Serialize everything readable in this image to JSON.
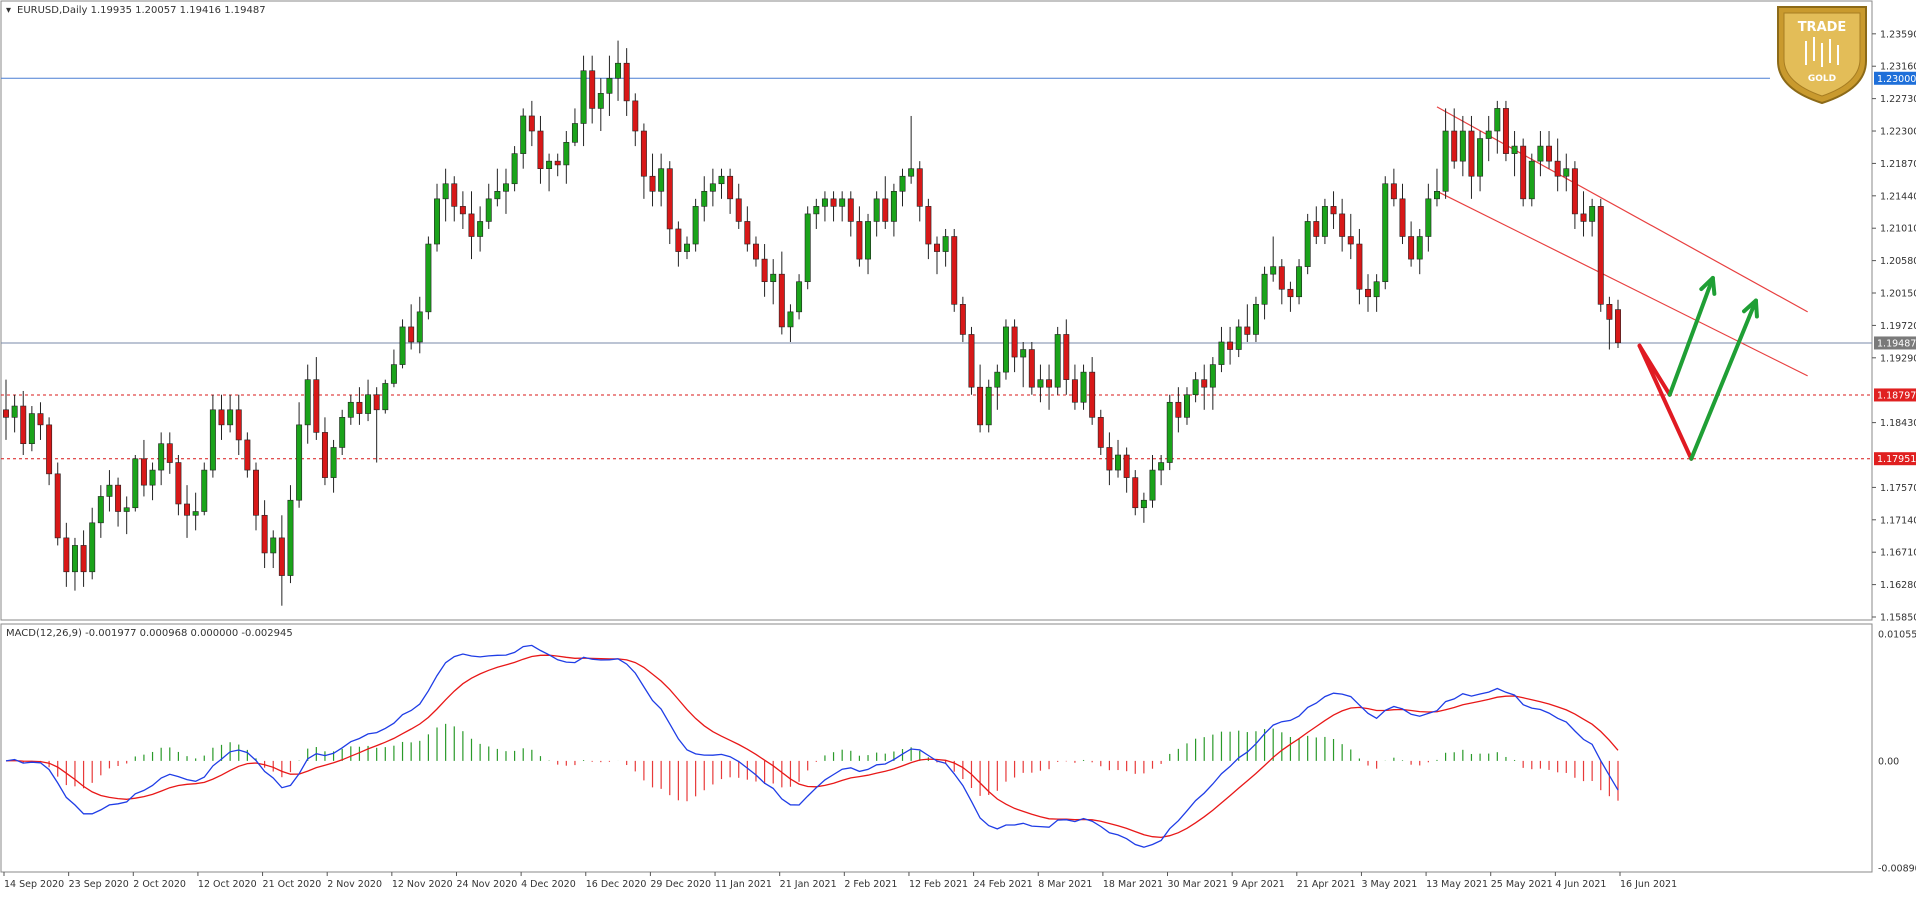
{
  "main_panel": {
    "symbol_header": "EURUSD,Daily  1.19935 1.20057 1.19416 1.19487",
    "y_ticks": [
      "1.23590",
      "1.23160",
      "1.22730",
      "1.22300",
      "1.21870",
      "1.21440",
      "1.21010",
      "1.20580",
      "1.20150",
      "1.19720",
      "1.19290",
      "1.18430",
      "1.17570",
      "1.17140",
      "1.16710",
      "1.16280",
      "1.15850"
    ],
    "price_labels": [
      {
        "text": "1.23000",
        "value": 1.23,
        "color": "#1e6fd9",
        "kind": "line"
      },
      {
        "text": "1.19487",
        "value": 1.19487,
        "color": "#7a7a7a",
        "kind": "current"
      },
      {
        "text": "1.18797",
        "value": 1.18797,
        "color": "#e02020",
        "kind": "dashed"
      },
      {
        "text": "1.17951",
        "value": 1.17951,
        "color": "#e02020",
        "kind": "dashed"
      }
    ]
  },
  "macd_panel": {
    "header": "MACD(12,26,9) -0.001977 0.000968 0.000000 -0.002945",
    "y_ticks": [
      "0.010553",
      "0.00",
      "-0.008908"
    ]
  },
  "x_labels": [
    "14 Sep 2020",
    "23 Sep 2020",
    "2 Oct 2020",
    "12 Oct 2020",
    "21 Oct 2020",
    "2 Nov 2020",
    "12 Nov 2020",
    "24 Nov 2020",
    "4 Dec 2020",
    "16 Dec 2020",
    "29 Dec 2020",
    "11 Jan 2021",
    "21 Jan 2021",
    "2 Feb 2021",
    "12 Feb 2021",
    "24 Feb 2021",
    "8 Mar 2021",
    "18 Mar 2021",
    "30 Mar 2021",
    "9 Apr 2021",
    "21 Apr 2021",
    "3 May 2021",
    "13 May 2021",
    "25 May 2021",
    "4 Jun 2021",
    "16 Jun 2021"
  ],
  "logo": {
    "line1": "TRADE",
    "line2": "GOLD"
  },
  "colors": {
    "bull": "#1aa31a",
    "bear": "#d81818",
    "macd_line": "#1f3de6",
    "signal_line": "#e81818",
    "hist_pos": "#2a9a2a",
    "hist_neg": "#e83a3a",
    "channel": "#e84040",
    "arrow_green": "#1f9f35",
    "arrow_red": "#e01a22",
    "hline_blue": "#4a7fd4"
  },
  "chart_data": {
    "type": "candlestick",
    "title": "EURUSD,Daily",
    "ylim": [
      1.1585,
      1.238
    ],
    "macd_ylim": [
      -0.008908,
      0.010553
    ],
    "indicator": "MACD(12,26,9)",
    "candles": [
      [
        1.186,
        1.19,
        1.182,
        1.185
      ],
      [
        1.185,
        1.188,
        1.183,
        1.1865
      ],
      [
        1.1865,
        1.1885,
        1.18,
        1.1815
      ],
      [
        1.1815,
        1.1865,
        1.1805,
        1.1855
      ],
      [
        1.1855,
        1.187,
        1.182,
        1.184
      ],
      [
        1.184,
        1.185,
        1.176,
        1.1775
      ],
      [
        1.1775,
        1.179,
        1.168,
        1.169
      ],
      [
        1.169,
        1.171,
        1.1625,
        1.1645
      ],
      [
        1.1645,
        1.169,
        1.162,
        1.168
      ],
      [
        1.168,
        1.17,
        1.1625,
        1.1645
      ],
      [
        1.1645,
        1.173,
        1.1635,
        1.171
      ],
      [
        1.171,
        1.176,
        1.169,
        1.1745
      ],
      [
        1.1745,
        1.178,
        1.1725,
        1.176
      ],
      [
        1.176,
        1.177,
        1.1705,
        1.1725
      ],
      [
        1.1725,
        1.1745,
        1.1695,
        1.173
      ],
      [
        1.173,
        1.18,
        1.1725,
        1.1795
      ],
      [
        1.1795,
        1.182,
        1.1745,
        1.176
      ],
      [
        1.176,
        1.179,
        1.174,
        1.178
      ],
      [
        1.178,
        1.183,
        1.176,
        1.1815
      ],
      [
        1.1815,
        1.183,
        1.1775,
        1.179
      ],
      [
        1.179,
        1.18,
        1.172,
        1.1735
      ],
      [
        1.1735,
        1.176,
        1.169,
        1.172
      ],
      [
        1.172,
        1.175,
        1.17,
        1.1725
      ],
      [
        1.1725,
        1.179,
        1.172,
        1.178
      ],
      [
        1.178,
        1.188,
        1.177,
        1.186
      ],
      [
        1.186,
        1.188,
        1.182,
        1.184
      ],
      [
        1.184,
        1.188,
        1.183,
        1.186
      ],
      [
        1.186,
        1.188,
        1.18,
        1.182
      ],
      [
        1.182,
        1.183,
        1.177,
        1.178
      ],
      [
        1.178,
        1.179,
        1.17,
        1.172
      ],
      [
        1.172,
        1.174,
        1.165,
        1.167
      ],
      [
        1.167,
        1.17,
        1.165,
        1.169
      ],
      [
        1.169,
        1.172,
        1.16,
        1.164
      ],
      [
        1.164,
        1.176,
        1.163,
        1.174
      ],
      [
        1.174,
        1.187,
        1.173,
        1.184
      ],
      [
        1.184,
        1.192,
        1.1815,
        1.19
      ],
      [
        1.19,
        1.193,
        1.182,
        1.183
      ],
      [
        1.183,
        1.185,
        1.176,
        1.177
      ],
      [
        1.177,
        1.182,
        1.175,
        1.181
      ],
      [
        1.181,
        1.186,
        1.18,
        1.185
      ],
      [
        1.185,
        1.188,
        1.184,
        1.187
      ],
      [
        1.187,
        1.189,
        1.184,
        1.1855
      ],
      [
        1.1855,
        1.19,
        1.1845,
        1.188
      ],
      [
        1.188,
        1.189,
        1.179,
        1.186
      ],
      [
        1.186,
        1.19,
        1.1855,
        1.1895
      ],
      [
        1.1895,
        1.194,
        1.189,
        1.192
      ],
      [
        1.192,
        1.198,
        1.1915,
        1.197
      ],
      [
        1.197,
        1.2,
        1.194,
        1.195
      ],
      [
        1.195,
        1.201,
        1.1935,
        1.199
      ],
      [
        1.199,
        1.209,
        1.198,
        1.208
      ],
      [
        1.208,
        1.216,
        1.207,
        1.214
      ],
      [
        1.214,
        1.218,
        1.211,
        1.216
      ],
      [
        1.216,
        1.217,
        1.211,
        1.213
      ],
      [
        1.213,
        1.215,
        1.21,
        1.212
      ],
      [
        1.212,
        1.215,
        1.206,
        1.209
      ],
      [
        1.209,
        1.213,
        1.207,
        1.211
      ],
      [
        1.211,
        1.216,
        1.21,
        1.214
      ],
      [
        1.214,
        1.218,
        1.213,
        1.215
      ],
      [
        1.215,
        1.218,
        1.212,
        1.216
      ],
      [
        1.216,
        1.221,
        1.215,
        1.22
      ],
      [
        1.22,
        1.226,
        1.218,
        1.225
      ],
      [
        1.225,
        1.227,
        1.221,
        1.223
      ],
      [
        1.223,
        1.225,
        1.216,
        1.218
      ],
      [
        1.218,
        1.22,
        1.215,
        1.219
      ],
      [
        1.219,
        1.22,
        1.217,
        1.2185
      ],
      [
        1.2185,
        1.223,
        1.216,
        1.2215
      ],
      [
        1.2215,
        1.226,
        1.221,
        1.224
      ],
      [
        1.224,
        1.233,
        1.221,
        1.231
      ],
      [
        1.231,
        1.233,
        1.224,
        1.226
      ],
      [
        1.226,
        1.23,
        1.223,
        1.228
      ],
      [
        1.228,
        1.233,
        1.225,
        1.23
      ],
      [
        1.23,
        1.235,
        1.227,
        1.232
      ],
      [
        1.232,
        1.234,
        1.225,
        1.227
      ],
      [
        1.227,
        1.228,
        1.221,
        1.223
      ],
      [
        1.223,
        1.224,
        1.214,
        1.217
      ],
      [
        1.217,
        1.22,
        1.213,
        1.215
      ],
      [
        1.215,
        1.22,
        1.213,
        1.218
      ],
      [
        1.218,
        1.219,
        1.208,
        1.21
      ],
      [
        1.21,
        1.211,
        1.205,
        1.207
      ],
      [
        1.207,
        1.209,
        1.206,
        1.208
      ],
      [
        1.208,
        1.214,
        1.207,
        1.213
      ],
      [
        1.213,
        1.217,
        1.211,
        1.215
      ],
      [
        1.215,
        1.218,
        1.213,
        1.216
      ],
      [
        1.216,
        1.218,
        1.214,
        1.217
      ],
      [
        1.217,
        1.218,
        1.212,
        1.214
      ],
      [
        1.214,
        1.216,
        1.21,
        1.211
      ],
      [
        1.211,
        1.213,
        1.207,
        1.208
      ],
      [
        1.208,
        1.209,
        1.205,
        1.206
      ],
      [
        1.206,
        1.208,
        1.201,
        1.203
      ],
      [
        1.203,
        1.206,
        1.2,
        1.204
      ],
      [
        1.204,
        1.207,
        1.196,
        1.197
      ],
      [
        1.197,
        1.2,
        1.195,
        1.199
      ],
      [
        1.199,
        1.204,
        1.198,
        1.203
      ],
      [
        1.203,
        1.213,
        1.202,
        1.212
      ],
      [
        1.212,
        1.214,
        1.21,
        1.213
      ],
      [
        1.213,
        1.215,
        1.211,
        1.214
      ],
      [
        1.214,
        1.215,
        1.211,
        1.213
      ],
      [
        1.213,
        1.215,
        1.211,
        1.214
      ],
      [
        1.214,
        1.215,
        1.209,
        1.211
      ],
      [
        1.211,
        1.213,
        1.205,
        1.206
      ],
      [
        1.206,
        1.212,
        1.204,
        1.211
      ],
      [
        1.211,
        1.215,
        1.209,
        1.214
      ],
      [
        1.214,
        1.217,
        1.21,
        1.211
      ],
      [
        1.211,
        1.216,
        1.209,
        1.215
      ],
      [
        1.215,
        1.218,
        1.213,
        1.217
      ],
      [
        1.217,
        1.225,
        1.216,
        1.218
      ],
      [
        1.218,
        1.219,
        1.211,
        1.213
      ],
      [
        1.213,
        1.214,
        1.206,
        1.208
      ],
      [
        1.208,
        1.209,
        1.204,
        1.207
      ],
      [
        1.207,
        1.21,
        1.205,
        1.209
      ],
      [
        1.209,
        1.21,
        1.199,
        1.2
      ],
      [
        1.2,
        1.201,
        1.195,
        1.196
      ],
      [
        1.196,
        1.197,
        1.188,
        1.189
      ],
      [
        1.189,
        1.192,
        1.183,
        1.184
      ],
      [
        1.184,
        1.19,
        1.183,
        1.189
      ],
      [
        1.189,
        1.192,
        1.186,
        1.191
      ],
      [
        1.191,
        1.198,
        1.19,
        1.197
      ],
      [
        1.197,
        1.198,
        1.191,
        1.193
      ],
      [
        1.193,
        1.195,
        1.189,
        1.194
      ],
      [
        1.194,
        1.195,
        1.188,
        1.189
      ],
      [
        1.189,
        1.192,
        1.187,
        1.19
      ],
      [
        1.19,
        1.192,
        1.186,
        1.189
      ],
      [
        1.189,
        1.197,
        1.188,
        1.196
      ],
      [
        1.196,
        1.198,
        1.188,
        1.19
      ],
      [
        1.19,
        1.192,
        1.186,
        1.187
      ],
      [
        1.187,
        1.192,
        1.186,
        1.191
      ],
      [
        1.191,
        1.193,
        1.184,
        1.185
      ],
      [
        1.185,
        1.186,
        1.18,
        1.181
      ],
      [
        1.181,
        1.183,
        1.176,
        1.178
      ],
      [
        1.178,
        1.182,
        1.177,
        1.18
      ],
      [
        1.18,
        1.181,
        1.175,
        1.177
      ],
      [
        1.177,
        1.178,
        1.172,
        1.173
      ],
      [
        1.173,
        1.175,
        1.171,
        1.174
      ],
      [
        1.174,
        1.18,
        1.173,
        1.178
      ],
      [
        1.178,
        1.18,
        1.176,
        1.179
      ],
      [
        1.179,
        1.188,
        1.178,
        1.187
      ],
      [
        1.187,
        1.189,
        1.183,
        1.185
      ],
      [
        1.185,
        1.189,
        1.184,
        1.188
      ],
      [
        1.188,
        1.191,
        1.187,
        1.19
      ],
      [
        1.19,
        1.192,
        1.186,
        1.189
      ],
      [
        1.189,
        1.193,
        1.186,
        1.192
      ],
      [
        1.192,
        1.197,
        1.191,
        1.195
      ],
      [
        1.195,
        1.197,
        1.192,
        1.194
      ],
      [
        1.194,
        1.198,
        1.193,
        1.197
      ],
      [
        1.197,
        1.2,
        1.195,
        1.196
      ],
      [
        1.196,
        1.201,
        1.195,
        1.2
      ],
      [
        1.2,
        1.205,
        1.198,
        1.204
      ],
      [
        1.204,
        1.209,
        1.203,
        1.205
      ],
      [
        1.205,
        1.206,
        1.2,
        1.202
      ],
      [
        1.202,
        1.203,
        1.199,
        1.201
      ],
      [
        1.201,
        1.206,
        1.2,
        1.205
      ],
      [
        1.205,
        1.212,
        1.204,
        1.211
      ],
      [
        1.211,
        1.213,
        1.208,
        1.209
      ],
      [
        1.209,
        1.214,
        1.208,
        1.213
      ],
      [
        1.213,
        1.215,
        1.21,
        1.212
      ],
      [
        1.212,
        1.214,
        1.207,
        1.209
      ],
      [
        1.209,
        1.212,
        1.206,
        1.208
      ],
      [
        1.208,
        1.21,
        1.2,
        1.202
      ],
      [
        1.202,
        1.204,
        1.199,
        1.201
      ],
      [
        1.201,
        1.204,
        1.199,
        1.203
      ],
      [
        1.203,
        1.217,
        1.202,
        1.216
      ],
      [
        1.216,
        1.218,
        1.213,
        1.214
      ],
      [
        1.214,
        1.216,
        1.208,
        1.209
      ],
      [
        1.209,
        1.211,
        1.205,
        1.206
      ],
      [
        1.206,
        1.21,
        1.204,
        1.209
      ],
      [
        1.209,
        1.216,
        1.207,
        1.214
      ],
      [
        1.214,
        1.218,
        1.213,
        1.215
      ],
      [
        1.215,
        1.226,
        1.214,
        1.223
      ],
      [
        1.223,
        1.226,
        1.218,
        1.219
      ],
      [
        1.219,
        1.225,
        1.217,
        1.223
      ],
      [
        1.223,
        1.225,
        1.214,
        1.217
      ],
      [
        1.217,
        1.223,
        1.215,
        1.222
      ],
      [
        1.222,
        1.225,
        1.219,
        1.223
      ],
      [
        1.223,
        1.227,
        1.22,
        1.226
      ],
      [
        1.226,
        1.227,
        1.219,
        1.22
      ],
      [
        1.22,
        1.223,
        1.217,
        1.221
      ],
      [
        1.221,
        1.222,
        1.213,
        1.214
      ],
      [
        1.214,
        1.22,
        1.213,
        1.219
      ],
      [
        1.219,
        1.223,
        1.217,
        1.221
      ],
      [
        1.221,
        1.223,
        1.218,
        1.219
      ],
      [
        1.219,
        1.222,
        1.215,
        1.217
      ],
      [
        1.217,
        1.22,
        1.215,
        1.218
      ],
      [
        1.218,
        1.219,
        1.21,
        1.212
      ],
      [
        1.212,
        1.215,
        1.209,
        1.211
      ],
      [
        1.211,
        1.214,
        1.209,
        1.213
      ],
      [
        1.213,
        1.214,
        1.199,
        1.2
      ],
      [
        1.2,
        1.201,
        1.194,
        1.198
      ],
      [
        1.1993,
        1.2006,
        1.1942,
        1.1949
      ]
    ],
    "drawings": {
      "resistance_levels": [
        1.23
      ],
      "support_levels": [
        1.18797,
        1.17951
      ],
      "current_price": 1.19487,
      "channel": {
        "upper": [
          [
            166,
            1.2262
          ],
          [
            209,
            1.199
          ]
        ],
        "lower": [
          [
            166,
            1.215
          ],
          [
            209,
            1.1905
          ]
        ]
      },
      "projection_down": [
        [
          189.5,
          1.1945
        ],
        [
          193,
          1.188
        ]
      ],
      "projection_up": [
        [
          193,
          1.188
        ],
        [
          198,
          1.2035
        ]
      ],
      "projection_deep_down": [
        [
          189.5,
          1.1945
        ],
        [
          195.5,
          1.1795
        ]
      ],
      "projection_deep_up": [
        [
          195.5,
          1.1795
        ],
        [
          203,
          1.2005
        ]
      ]
    }
  }
}
